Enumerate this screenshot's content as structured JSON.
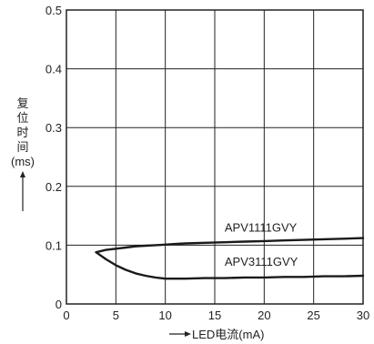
{
  "chart_data": {
    "type": "line",
    "title": "",
    "xlabel": "LED电流(mA)",
    "ylabel": [
      "复",
      "位",
      "时",
      "间",
      "(ms)"
    ],
    "xlim": [
      0,
      30
    ],
    "ylim": [
      0,
      0.5
    ],
    "xticks": [
      "0",
      "5",
      "10",
      "15",
      "20",
      "25",
      "30"
    ],
    "yticks": [
      "0",
      "0.1",
      "0.2",
      "0.3",
      "0.4",
      "0.5"
    ],
    "grid": true,
    "series": [
      {
        "name": "APV1111GVY",
        "x": [
          3,
          4,
          5,
          6,
          7,
          8,
          9,
          10,
          11,
          12,
          14,
          16,
          18,
          20,
          22,
          24,
          26,
          28,
          30
        ],
        "y": [
          0.088,
          0.092,
          0.094,
          0.096,
          0.098,
          0.099,
          0.1,
          0.101,
          0.102,
          0.103,
          0.104,
          0.105,
          0.106,
          0.107,
          0.108,
          0.109,
          0.11,
          0.111,
          0.112
        ]
      },
      {
        "name": "APV3111GVY",
        "x": [
          3,
          4,
          5,
          6,
          7,
          8,
          9,
          10,
          11,
          12,
          14,
          16,
          18,
          20,
          22,
          24,
          26,
          28,
          30
        ],
        "y": [
          0.088,
          0.076,
          0.066,
          0.058,
          0.052,
          0.048,
          0.045,
          0.043,
          0.043,
          0.043,
          0.044,
          0.044,
          0.045,
          0.045,
          0.046,
          0.046,
          0.047,
          0.047,
          0.048
        ]
      }
    ]
  }
}
